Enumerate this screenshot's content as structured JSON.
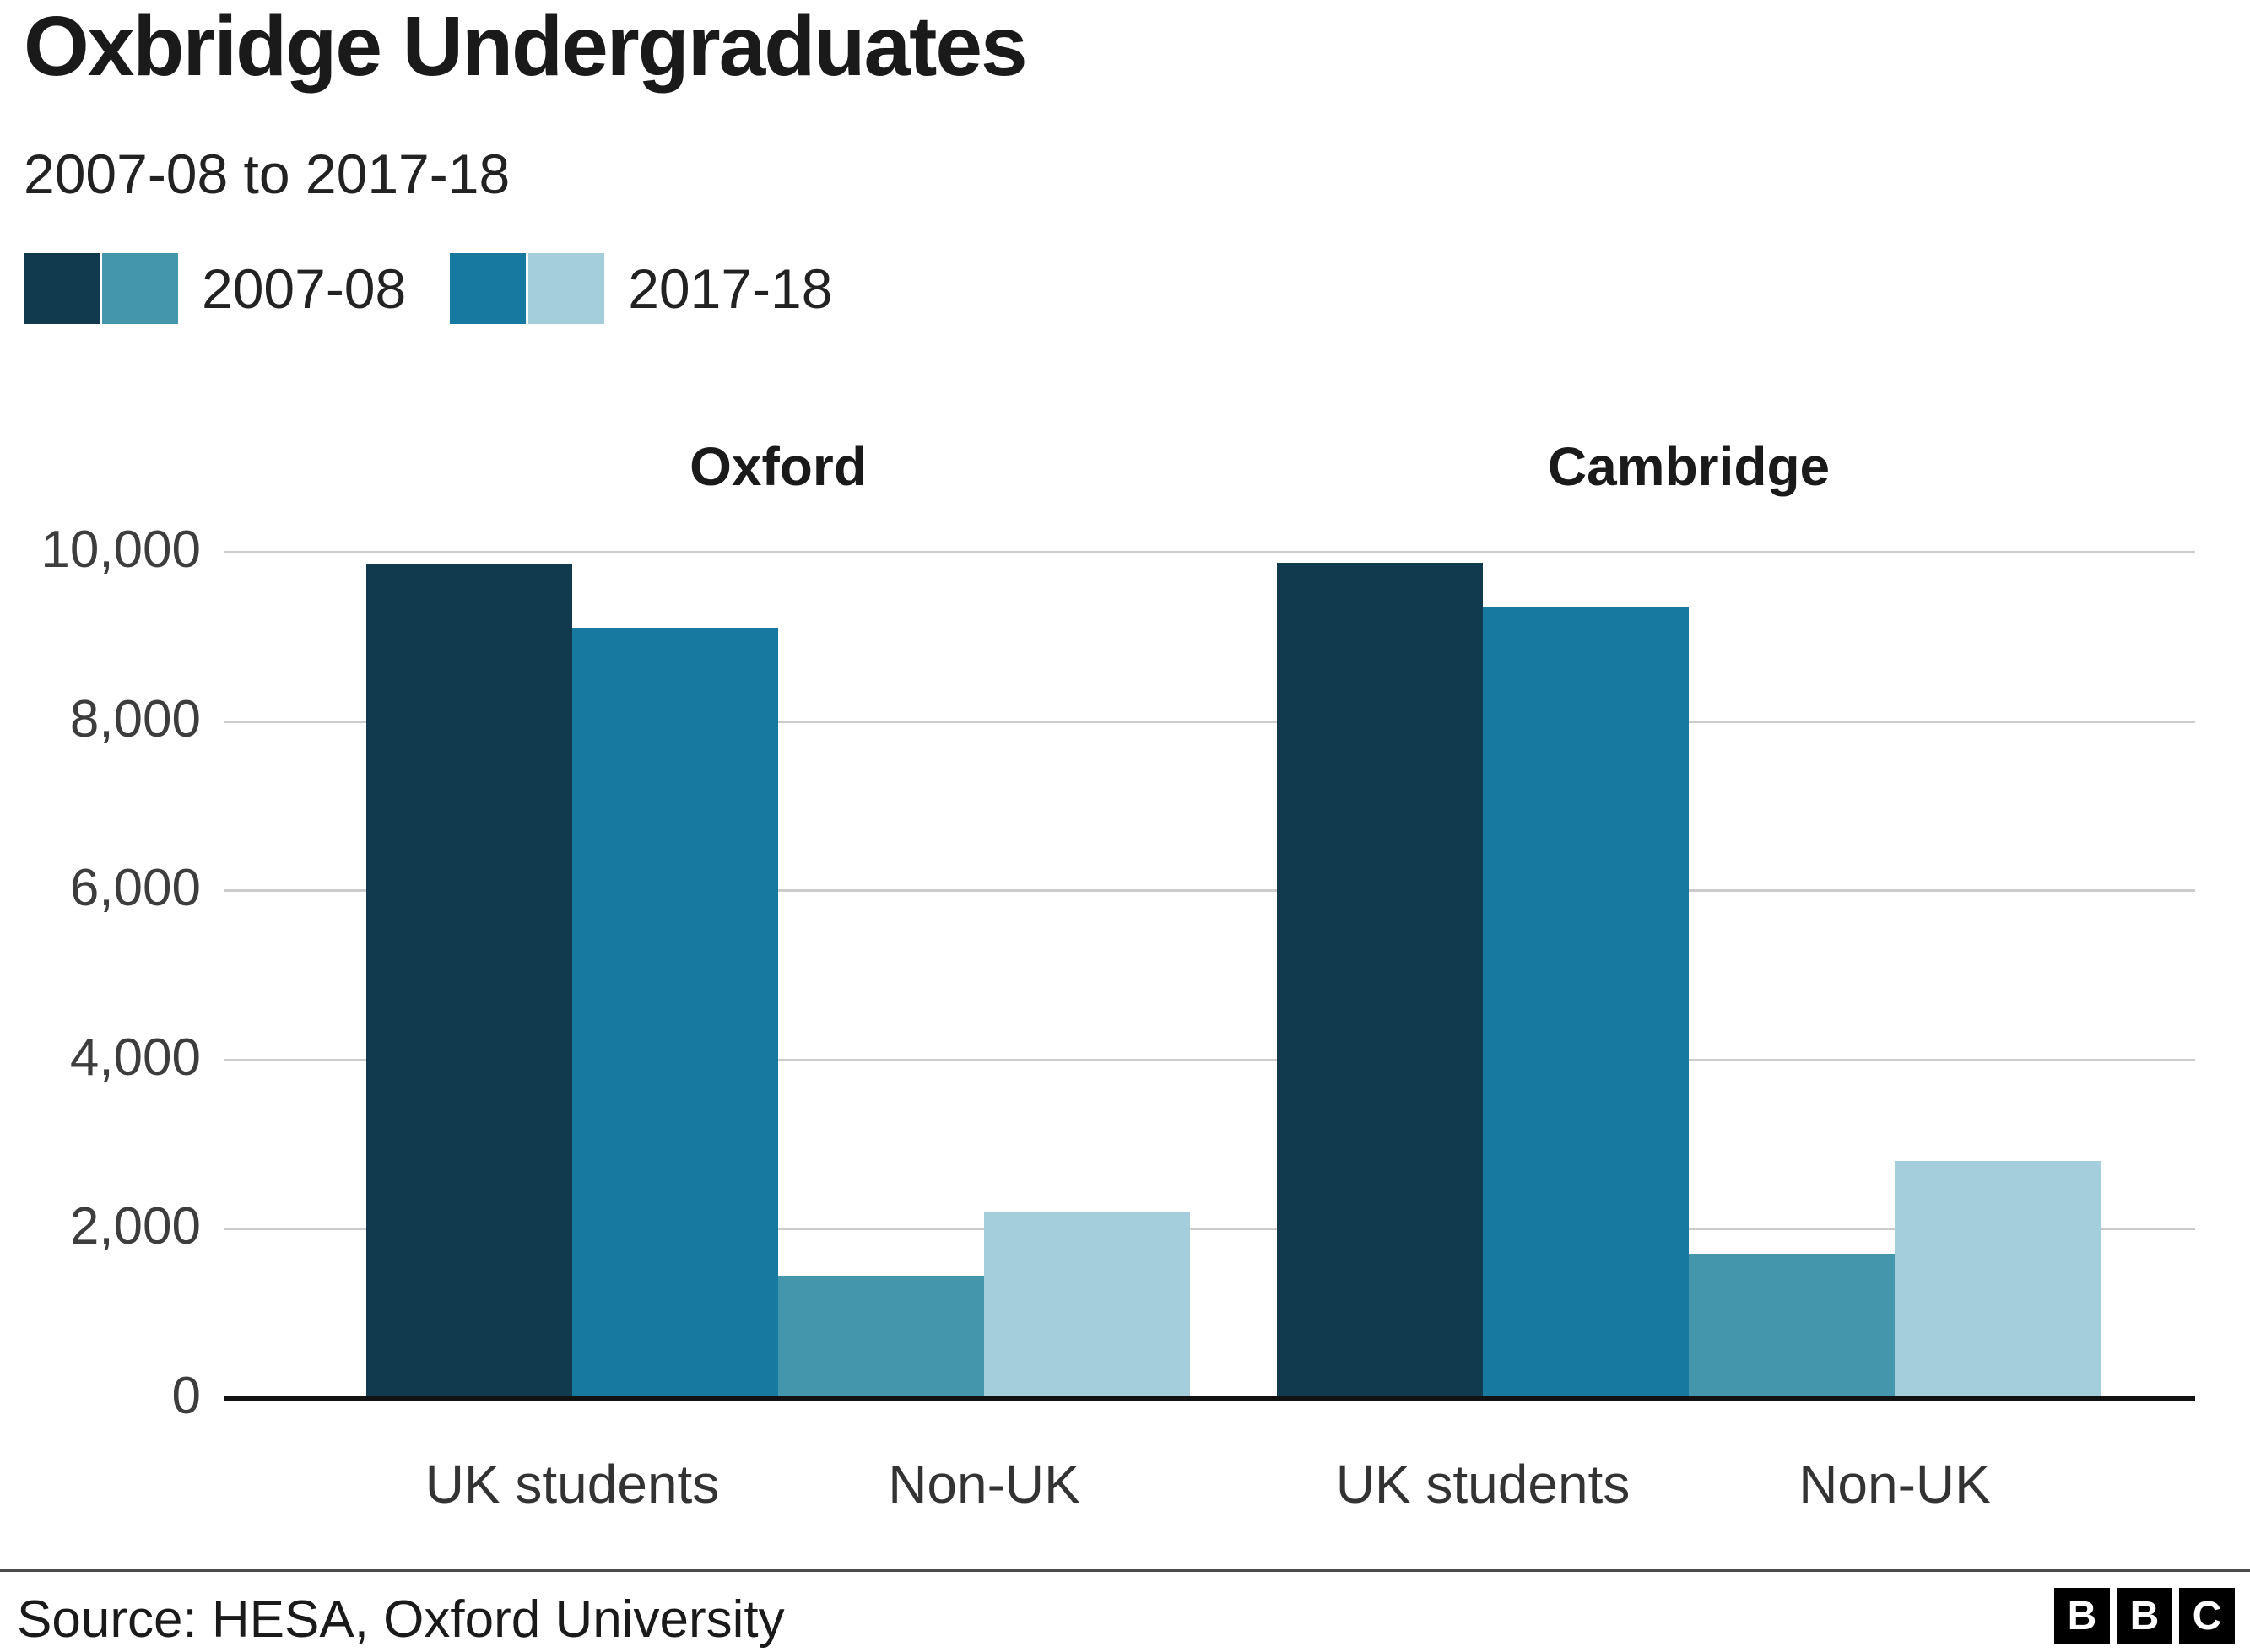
{
  "header": {
    "title": "Oxbridge Undergraduates",
    "subtitle": "2007-08 to 2017-18"
  },
  "legend": {
    "items": [
      {
        "label": "2007-08",
        "swatches": [
          "#113a4f",
          "#4496ad"
        ]
      },
      {
        "label": "2017-18",
        "swatches": [
          "#1879a0",
          "#a5cedd"
        ]
      }
    ]
  },
  "chart_data": {
    "type": "bar",
    "title": "Oxbridge Undergraduates",
    "subtitle": "2007-08 to 2017-18",
    "ylim": [
      0,
      10000
    ],
    "yticks": [
      0,
      2000,
      4000,
      6000,
      8000,
      10000
    ],
    "ytick_labels": [
      "0",
      "2,000",
      "4,000",
      "6,000",
      "8,000",
      "10,000"
    ],
    "grid": "horizontal",
    "legend_position": "top-left",
    "panels": [
      {
        "title": "Oxford",
        "categories": [
          "UK students",
          "Non-UK"
        ],
        "series": [
          {
            "name": "2007-08",
            "values": [
              9850,
              1450
            ]
          },
          {
            "name": "2017-18",
            "values": [
              9100,
              2200
            ]
          }
        ]
      },
      {
        "title": "Cambridge",
        "categories": [
          "UK students",
          "Non-UK"
        ],
        "series": [
          {
            "name": "2007-08",
            "values": [
              9870,
              1700
            ]
          },
          {
            "name": "2017-18",
            "values": [
              9350,
              2800
            ]
          }
        ]
      }
    ],
    "colors": {
      "2007-08_uk": "#113a4f",
      "2017-18_uk": "#1879a0",
      "2007-08_nonuk": "#4496ad",
      "2017-18_nonuk": "#a5cedd"
    }
  },
  "footer": {
    "source": "Source: HESA, Oxford University",
    "logo_letters": [
      "B",
      "B",
      "C"
    ]
  }
}
